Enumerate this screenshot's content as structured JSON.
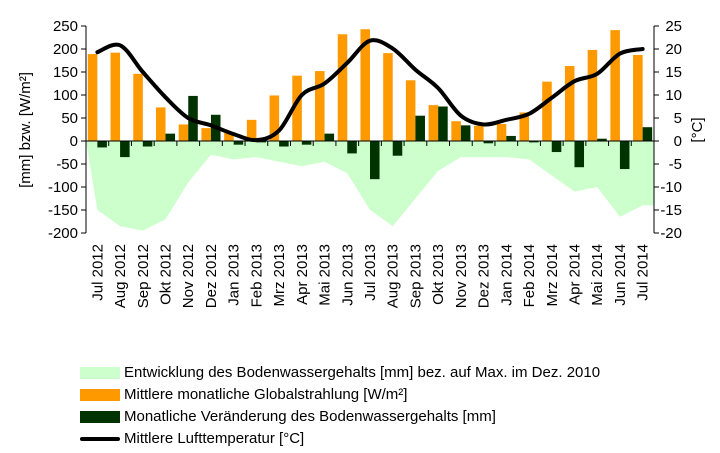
{
  "chart_data": {
    "type": "bar",
    "categories": [
      "Jul 2012",
      "Aug 2012",
      "Sep 2012",
      "Okt 2012",
      "Nov 2012",
      "Dez 2012",
      "Jan 2013",
      "Feb 2013",
      "Mrz 2013",
      "Apr 2013",
      "Mai 2013",
      "Jun 2013",
      "Jul 2013",
      "Aug 2013",
      "Sep 2013",
      "Okt 2013",
      "Nov 2013",
      "Dez 2013",
      "Jan 2014",
      "Feb 2014",
      "Mrz 2014",
      "Apr 2014",
      "Mai 2014",
      "Jun 2014",
      "Jul 2014"
    ],
    "ylabel": "[mm] bzw. [W/m²]",
    "ylim": [
      -200,
      250
    ],
    "yticks": [
      "-200",
      "-150",
      "-100",
      "-50",
      "0",
      "50",
      "100",
      "150",
      "200",
      "250"
    ],
    "y2label": "[°C]",
    "y2lim": [
      -20,
      25
    ],
    "y2ticks": [
      "-20",
      "-15",
      "-10",
      "-5",
      "0",
      "5",
      "10",
      "15",
      "20",
      "25"
    ],
    "grid": false,
    "legend_position": "bottom",
    "series": [
      {
        "name": "Entwicklung des Bodenwassergehalts [mm] bez. auf Max. im Dez. 2010",
        "type": "area",
        "axis": "left",
        "color": "#ccffcc",
        "values": [
          -150,
          -185,
          -195,
          -170,
          -90,
          -30,
          -40,
          -35,
          -45,
          -55,
          -45,
          -70,
          -150,
          -185,
          -125,
          -65,
          -35,
          -35,
          -35,
          -40,
          -75,
          -110,
          -100,
          -165,
          -140
        ]
      },
      {
        "name": "Mittlere monatliche Globalstrahlung [W/m²]",
        "type": "bar",
        "axis": "left",
        "color": "#ff9900",
        "values": [
          189,
          192,
          146,
          73,
          36,
          28,
          18,
          46,
          99,
          142,
          152,
          232,
          243,
          191,
          132,
          78,
          43,
          33,
          37,
          62,
          129,
          163,
          198,
          241,
          187
        ]
      },
      {
        "name": "Monatliche Veränderung des Bodenwassergehalts [mm]",
        "type": "bar",
        "axis": "left",
        "color": "#003300",
        "values": [
          -14,
          -35,
          -12,
          16,
          98,
          57,
          -8,
          -3,
          -12,
          -8,
          16,
          -27,
          -83,
          -32,
          55,
          75,
          34,
          -5,
          11,
          -3,
          -24,
          -57,
          5,
          -61,
          30
        ]
      },
      {
        "name": "Mittlere Lufttemperatur [°C]",
        "type": "line",
        "axis": "right",
        "color": "#000000",
        "values": [
          19.3,
          20.8,
          15,
          9.5,
          5,
          3.4,
          1.5,
          0.2,
          2.3,
          10,
          12.5,
          17,
          21.8,
          20.1,
          15.5,
          11.5,
          5.5,
          3.6,
          4.6,
          5.9,
          9.4,
          13,
          14.6,
          19,
          20
        ]
      }
    ]
  }
}
